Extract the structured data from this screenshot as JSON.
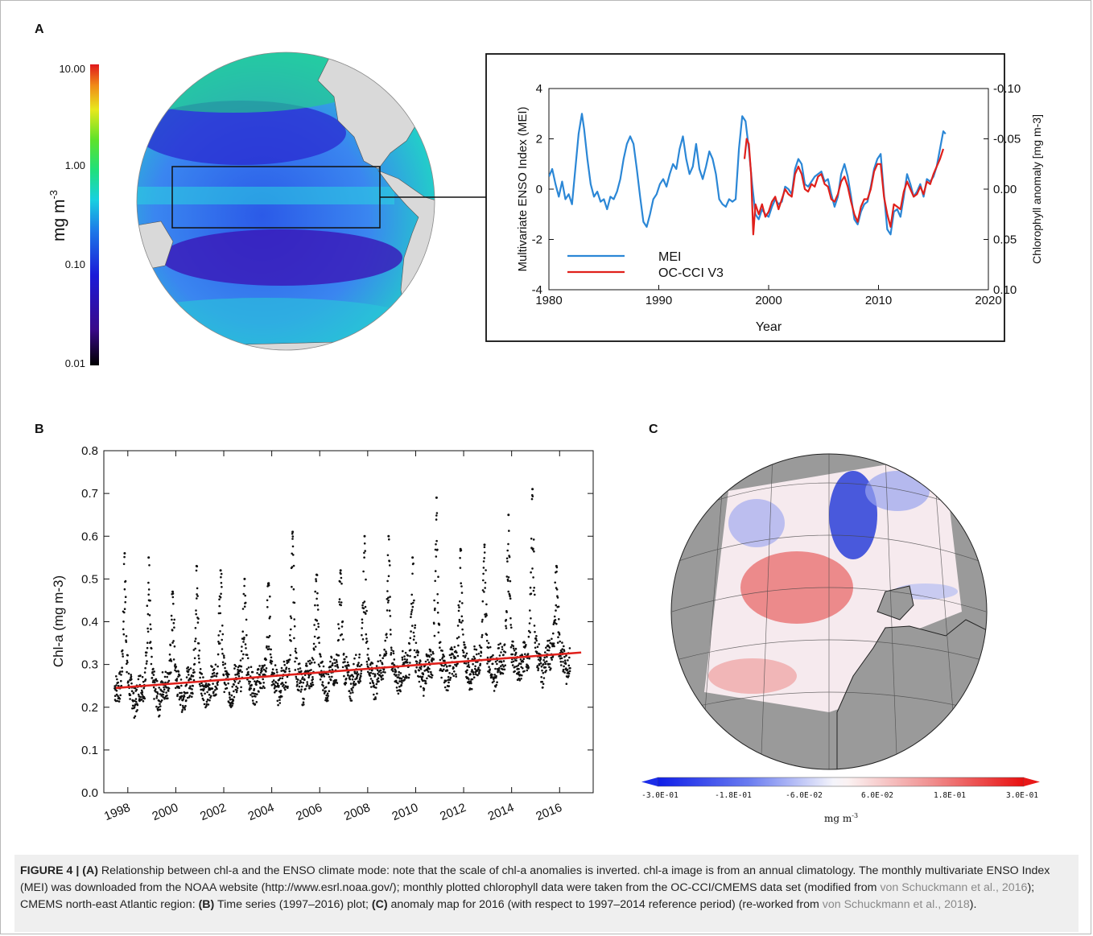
{
  "figure": {
    "panel_labels": [
      "A",
      "B",
      "C"
    ]
  },
  "colors": {
    "mei": "#2b87d6",
    "occi": "#e0201b",
    "trend": "#e0201b",
    "points": "#111111",
    "land": "#d9d9d9",
    "land_c": "#9a9a9a"
  },
  "panelA_map": {
    "colorbar_ticks": [
      "10.00",
      "1.00",
      "0.10",
      "0.01"
    ],
    "colorbar_label": "mg m",
    "colorbar_label_sup": "-3"
  },
  "panelC_map": {
    "colorbar_ticks": [
      "-3.0E-01",
      "-1.8E-01",
      "-6.0E-02",
      "6.0E-02",
      "1.8E-01",
      "3.0E-01"
    ],
    "unit_label": "mg m",
    "unit_sup": "-3"
  },
  "chart_data": [
    {
      "type": "line",
      "xlabel": "Year",
      "ylabel": "Multivariate ENSO Index (MEI)",
      "ylabel_right": "Chlorophyll anomaly [mg m-3]",
      "xlim": [
        1980,
        2020
      ],
      "ylim": [
        -4,
        4
      ],
      "ylim_right": [
        0.1,
        -0.1
      ],
      "x_ticks": [
        "1980",
        "1990",
        "2000",
        "2010",
        "2020"
      ],
      "y_ticks": [
        "-4",
        "-2",
        "0",
        "2",
        "4"
      ],
      "y_ticks_right": [
        "-0.10",
        "-0.05",
        "0.00",
        "0.05",
        "0.10"
      ],
      "legend": "bottom-left",
      "series": [
        {
          "name": "MEI",
          "axis": "left",
          "x": [
            1980.0,
            1980.3,
            1980.6,
            1980.9,
            1981.2,
            1981.5,
            1981.8,
            1982.1,
            1982.4,
            1982.7,
            1983.0,
            1983.2,
            1983.5,
            1983.8,
            1984.1,
            1984.4,
            1984.7,
            1985.0,
            1985.3,
            1985.6,
            1985.9,
            1986.2,
            1986.5,
            1986.8,
            1987.1,
            1987.4,
            1987.7,
            1988.0,
            1988.3,
            1988.6,
            1988.9,
            1989.2,
            1989.5,
            1989.8,
            1990.1,
            1990.4,
            1990.7,
            1991.0,
            1991.3,
            1991.6,
            1991.9,
            1992.2,
            1992.5,
            1992.8,
            1993.1,
            1993.4,
            1993.7,
            1994.0,
            1994.3,
            1994.6,
            1994.9,
            1995.2,
            1995.5,
            1995.8,
            1996.1,
            1996.4,
            1996.7,
            1997.0,
            1997.3,
            1997.6,
            1997.9,
            1998.2,
            1998.5,
            1998.8,
            1999.1,
            1999.4,
            1999.7,
            2000.0,
            2000.3,
            2000.6,
            2000.9,
            2001.2,
            2001.5,
            2001.8,
            2002.1,
            2002.4,
            2002.7,
            2003.0,
            2003.3,
            2003.6,
            2003.9,
            2004.2,
            2004.5,
            2004.8,
            2005.1,
            2005.4,
            2005.7,
            2006.0,
            2006.3,
            2006.6,
            2006.9,
            2007.2,
            2007.5,
            2007.8,
            2008.1,
            2008.4,
            2008.7,
            2009.0,
            2009.3,
            2009.6,
            2009.9,
            2010.2,
            2010.5,
            2010.8,
            2011.1,
            2011.4,
            2011.7,
            2012.0,
            2012.3,
            2012.6,
            2012.9,
            2013.2,
            2013.5,
            2013.8,
            2014.1,
            2014.4,
            2014.7,
            2015.0,
            2015.3,
            2015.6,
            2015.9,
            2016.1
          ],
          "values": [
            0.5,
            0.8,
            0.2,
            -0.3,
            0.3,
            -0.4,
            -0.2,
            -0.6,
            0.8,
            2.2,
            3.0,
            2.4,
            1.2,
            0.2,
            -0.3,
            -0.1,
            -0.5,
            -0.4,
            -0.8,
            -0.3,
            -0.4,
            -0.1,
            0.4,
            1.2,
            1.8,
            2.1,
            1.8,
            0.8,
            -0.3,
            -1.3,
            -1.5,
            -1.0,
            -0.4,
            -0.2,
            0.2,
            0.4,
            0.1,
            0.6,
            1.0,
            0.8,
            1.6,
            2.1,
            1.2,
            0.6,
            0.9,
            1.8,
            0.8,
            0.4,
            0.9,
            1.5,
            1.2,
            0.6,
            -0.4,
            -0.6,
            -0.7,
            -0.4,
            -0.5,
            -0.4,
            1.6,
            2.9,
            2.7,
            1.6,
            0.2,
            -1.0,
            -1.2,
            -0.8,
            -1.0,
            -1.1,
            -0.7,
            -0.4,
            -0.6,
            -0.5,
            0.1,
            0.0,
            -0.2,
            0.8,
            1.2,
            1.0,
            0.2,
            0.1,
            0.3,
            0.5,
            0.6,
            0.7,
            0.3,
            0.4,
            -0.2,
            -0.7,
            -0.3,
            0.6,
            1.0,
            0.5,
            -0.3,
            -1.2,
            -1.4,
            -0.9,
            -0.6,
            -0.5,
            0.1,
            0.8,
            1.2,
            1.4,
            -0.2,
            -1.6,
            -1.8,
            -0.9,
            -0.8,
            -1.1,
            -0.3,
            0.6,
            0.2,
            -0.3,
            -0.1,
            0.2,
            -0.3,
            0.4,
            0.3,
            0.5,
            0.9,
            1.6,
            2.3,
            2.2
          ]
        },
        {
          "name": "OC-CCI V3",
          "axis": "left",
          "x": [
            1997.8,
            1998.0,
            1998.2,
            1998.4,
            1998.6,
            1998.8,
            1999.1,
            1999.4,
            1999.7,
            2000.0,
            2000.3,
            2000.6,
            2000.9,
            2001.2,
            2001.5,
            2001.8,
            2002.1,
            2002.4,
            2002.7,
            2003.0,
            2003.3,
            2003.6,
            2003.9,
            2004.2,
            2004.5,
            2004.8,
            2005.1,
            2005.4,
            2005.7,
            2006.0,
            2006.3,
            2006.6,
            2006.9,
            2007.2,
            2007.5,
            2007.8,
            2008.1,
            2008.4,
            2008.7,
            2009.0,
            2009.3,
            2009.6,
            2009.9,
            2010.2,
            2010.5,
            2010.8,
            2011.1,
            2011.4,
            2011.7,
            2012.0,
            2012.3,
            2012.6,
            2012.9,
            2013.2,
            2013.5,
            2013.8,
            2014.1,
            2014.4,
            2014.7,
            2015.0,
            2015.3,
            2015.6,
            2015.9
          ],
          "values": [
            1.2,
            2.0,
            1.8,
            0.6,
            -1.8,
            -0.6,
            -1.0,
            -0.6,
            -1.1,
            -0.9,
            -0.5,
            -0.3,
            -0.8,
            -0.4,
            0.0,
            -0.2,
            -0.3,
            0.6,
            0.9,
            0.6,
            0.0,
            -0.1,
            0.2,
            0.1,
            0.5,
            0.6,
            0.2,
            0.1,
            -0.4,
            -0.5,
            -0.2,
            0.3,
            0.5,
            0.1,
            -0.5,
            -1.0,
            -1.3,
            -0.7,
            -0.4,
            -0.4,
            0.0,
            0.7,
            1.0,
            1.0,
            -0.3,
            -1.0,
            -1.5,
            -0.6,
            -0.7,
            -0.8,
            -0.1,
            0.3,
            0.0,
            -0.3,
            -0.2,
            0.1,
            -0.2,
            0.3,
            0.2,
            0.6,
            0.9,
            1.2,
            1.6
          ]
        }
      ]
    },
    {
      "type": "scatter",
      "xlabel": "",
      "ylabel": "Chl-a (mg m-3)",
      "xlim": [
        1997,
        2017.4
      ],
      "ylim": [
        0.0,
        0.8
      ],
      "x_ticks": [
        "1998",
        "2000",
        "2002",
        "2004",
        "2006",
        "2008",
        "2010",
        "2012",
        "2014",
        "2016"
      ],
      "y_ticks": [
        "0.0",
        "0.1",
        "0.2",
        "0.3",
        "0.4",
        "0.5",
        "0.6",
        "0.7",
        "0.8"
      ],
      "series": [
        {
          "type": "scatter",
          "annual_peaks": {
            "years": [
              1998,
              1999,
              2000,
              2001,
              2002,
              2003,
              2004,
              2005,
              2006,
              2007,
              2008,
              2009,
              2010,
              2011,
              2012,
              2013,
              2014,
              2015,
              2016
            ],
            "peak_max": [
              0.56,
              0.55,
              0.47,
              0.53,
              0.52,
              0.5,
              0.49,
              0.61,
              0.51,
              0.52,
              0.6,
              0.6,
              0.55,
              0.69,
              0.57,
              0.58,
              0.65,
              0.71,
              0.53
            ],
            "trough_min": [
              0.13,
              0.12,
              0.12,
              0.12,
              0.13,
              0.14,
              0.15,
              0.15,
              0.14,
              0.14,
              0.16,
              0.15,
              0.16,
              0.17,
              0.18,
              0.18,
              0.15,
              0.14,
              0.15
            ]
          }
        },
        {
          "type": "line",
          "trend_start": [
            1997.5,
            0.245
          ],
          "trend_end": [
            2016.9,
            0.328
          ]
        }
      ]
    }
  ],
  "caption": {
    "label": "FIGURE 4 | (A)",
    "t1": " Relationship between chl-a and the ENSO climate mode: note that the scale of chl-a anomalies is inverted. chl-a image is from an annual climatology. The monthly multivariate ENSO Index (MEI) was downloaded from the NOAA website (http://www.esrl.noaa.gov/); monthly plotted chlorophyll data were taken from the OC-CCI/CMEMS data set (modified from ",
    "cite1": "von Schuckmann et al., 2016",
    "t2": "); CMEMS north-east Atlantic region: ",
    "b_label": "(B)",
    "t3": " Time series (1997–2016) plot; ",
    "c_label": "(C)",
    "t4": " anomaly map for 2016 (with respect to 1997–2014 reference period) (re-worked from ",
    "cite2": "von Schuckmann et al., 2018",
    "t5": ")."
  }
}
